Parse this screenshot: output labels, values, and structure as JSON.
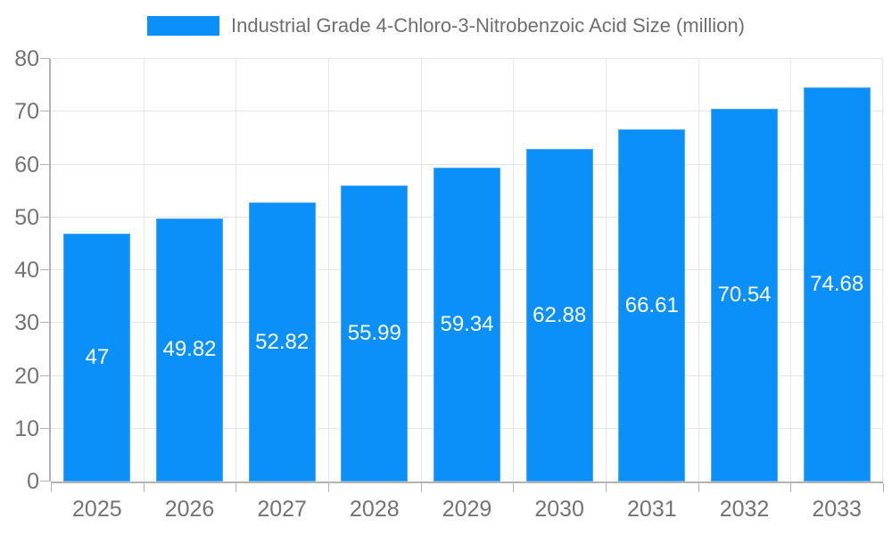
{
  "legend": {
    "label": "Industrial Grade 4-Chloro-3-Nitrobenzoic Acid Size (million)"
  },
  "chart_data": {
    "type": "bar",
    "title": "Industrial Grade 4-Chloro-3-Nitrobenzoic Acid Size (million)",
    "categories": [
      "2025",
      "2026",
      "2027",
      "2028",
      "2029",
      "2030",
      "2031",
      "2032",
      "2033"
    ],
    "series": [
      {
        "name": "Industrial Grade 4-Chloro-3-Nitrobenzoic Acid Size (million)",
        "values": [
          47,
          49.82,
          52.82,
          55.99,
          59.34,
          62.88,
          66.61,
          70.54,
          74.68
        ]
      }
    ],
    "value_labels": [
      "47",
      "49.82",
      "52.82",
      "55.99",
      "59.34",
      "62.88",
      "66.61",
      "70.54",
      "74.68"
    ],
    "xlabel": "",
    "ylabel": "",
    "ylim": [
      0,
      80
    ],
    "yticks": [
      0,
      10,
      20,
      30,
      40,
      50,
      60,
      70,
      80
    ],
    "grid": true,
    "legend_position": "top-center"
  },
  "colors": {
    "bar_fill": "#0a90f8",
    "bar_border": "#4faaf9",
    "grid_line": "#e6e6e6",
    "axis_line": "#b3b3b3",
    "axis_text": "#737373",
    "legend_text": "#6f6f6f",
    "value_text": "#ffffff",
    "background": "#ffffff"
  }
}
